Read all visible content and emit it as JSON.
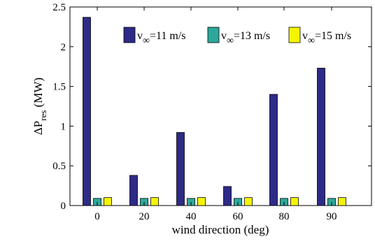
{
  "chart_data": {
    "type": "bar",
    "categories": [
      "0",
      "20",
      "40",
      "60",
      "80",
      "90"
    ],
    "series": [
      {
        "name": "v∞=11 m/s",
        "color": "#2e2a87",
        "values": [
          2.37,
          0.38,
          0.92,
          0.24,
          1.4,
          1.73
        ]
      },
      {
        "name": "v∞=13 m/s",
        "color": "#2ca89a",
        "values": [
          0.09,
          0.09,
          0.09,
          0.09,
          0.09,
          0.09
        ]
      },
      {
        "name": "v∞=15 m/s",
        "color": "#f5f500",
        "values": [
          0.1,
          0.1,
          0.1,
          0.1,
          0.1,
          0.1
        ]
      }
    ],
    "legend": [
      {
        "v": "v",
        "sub": "∞",
        "rest": "=11 m/s",
        "color": "#2e2a87"
      },
      {
        "v": "v",
        "sub": "∞",
        "rest": "=13 m/s",
        "color": "#2ca89a"
      },
      {
        "v": "v",
        "sub": "∞",
        "rest": "=15 m/s",
        "color": "#f5f500"
      }
    ],
    "yticks": [
      "0",
      "0.5",
      "1",
      "1.5",
      "2",
      "2.5"
    ],
    "ylim": [
      0,
      2.5
    ],
    "xlabel": "wind direction (deg)",
    "ylabel_main": "ΔP",
    "ylabel_sub": "res",
    "ylabel_unit": " (MW)",
    "grid": false,
    "legend_position": "top-right"
  }
}
